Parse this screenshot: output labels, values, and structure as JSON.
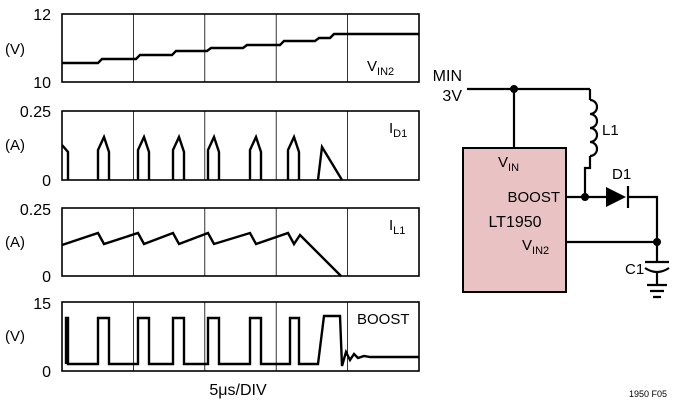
{
  "panels": [
    {
      "id": "vin2",
      "trace_label_main": "V",
      "trace_label_sub": "IN2",
      "unit": "(V)",
      "y_top_label": "12",
      "y_bottom_label": "10",
      "y_range": [
        10,
        12
      ]
    },
    {
      "id": "id1",
      "trace_label_main": "I",
      "trace_label_sub": "D1",
      "unit": "(A)",
      "y_top_label": "0.25",
      "y_bottom_label": "0",
      "y_range": [
        0,
        0.25
      ]
    },
    {
      "id": "il1",
      "trace_label_main": "I",
      "trace_label_sub": "L1",
      "unit": "(A)",
      "y_top_label": "0.25",
      "y_bottom_label": "0",
      "y_range": [
        0,
        0.25
      ]
    },
    {
      "id": "boost",
      "trace_label_main": "BOOST",
      "trace_label_sub": "",
      "unit": "(V)",
      "y_top_label": "15",
      "y_bottom_label": "0",
      "y_range": [
        0,
        15
      ]
    }
  ],
  "x_axis_label": "5μs/DIV",
  "schematic": {
    "source_label_line1": "MIN",
    "source_label_line2": "3V",
    "ic_name": "LT1950",
    "pin_vin_main": "V",
    "pin_vin_sub": "IN",
    "pin_boost": "BOOST",
    "pin_vin2_main": "V",
    "pin_vin2_sub": "IN2",
    "inductor_label": "L1",
    "diode_label": "D1",
    "capacitor_label": "C1"
  },
  "figure_id": "1950 F05",
  "colors": {
    "ic_fill": "#e9c3c3",
    "line": "#000000"
  }
}
